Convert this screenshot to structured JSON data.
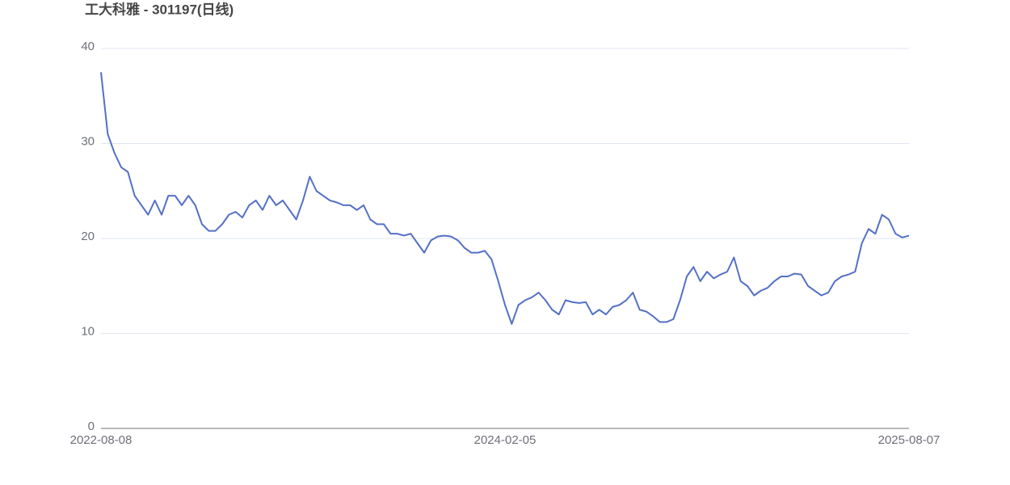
{
  "chart_data": {
    "type": "line",
    "title": "工大科雅 - 301197(日线)",
    "categories": [
      "2022-08-08",
      null,
      null,
      null,
      null,
      null,
      null,
      null,
      null,
      null,
      null,
      null,
      null,
      null,
      null,
      null,
      null,
      null,
      null,
      null,
      null,
      null,
      null,
      null,
      null,
      null,
      null,
      null,
      null,
      null,
      null,
      null,
      null,
      null,
      null,
      null,
      null,
      null,
      null,
      null,
      null,
      null,
      null,
      null,
      null,
      null,
      null,
      null,
      null,
      null,
      null,
      null,
      null,
      null,
      null,
      null,
      null,
      null,
      null,
      null,
      "2024-02-05",
      null,
      null,
      null,
      null,
      null,
      null,
      null,
      null,
      null,
      null,
      null,
      null,
      null,
      null,
      null,
      null,
      null,
      null,
      null,
      null,
      null,
      null,
      null,
      null,
      null,
      null,
      null,
      null,
      null,
      null,
      null,
      null,
      null,
      null,
      null,
      null,
      null,
      null,
      null,
      null,
      null,
      null,
      null,
      null,
      null,
      null,
      null,
      null,
      null,
      null,
      null,
      null,
      null,
      null,
      null,
      null,
      null,
      null,
      null,
      "2025-08-07"
    ],
    "values": [
      37.5,
      31,
      29,
      27.5,
      27,
      24.5,
      23.5,
      22.5,
      24,
      22.5,
      24.5,
      24.5,
      23.5,
      24.5,
      23.5,
      21.5,
      20.8,
      20.8,
      21.5,
      22.5,
      22.8,
      22.2,
      23.5,
      24,
      23,
      24.5,
      23.5,
      24,
      23,
      22,
      24,
      26.5,
      25,
      24.5,
      24,
      23.8,
      23.5,
      23.5,
      23,
      23.5,
      22,
      21.5,
      21.5,
      20.5,
      20.5,
      20.3,
      20.5,
      19.5,
      18.5,
      19.8,
      20.2,
      20.3,
      20.2,
      19.8,
      19,
      18.5,
      18.5,
      18.7,
      17.8,
      15.5,
      13,
      11,
      13,
      13.5,
      13.8,
      14.3,
      13.5,
      12.5,
      12,
      13.5,
      13.3,
      13.2,
      13.3,
      12,
      12.5,
      12,
      12.8,
      13,
      13.5,
      14.3,
      12.5,
      12.3,
      11.8,
      11.2,
      11.2,
      11.5,
      13.5,
      16,
      17,
      15.5,
      16.5,
      15.8,
      16.2,
      16.5,
      18,
      15.5,
      15,
      14,
      14.5,
      14.8,
      15.5,
      16,
      16,
      16.3,
      16.2,
      15,
      14.5,
      14,
      14.3,
      15.5,
      16,
      16.2,
      16.5,
      19.5,
      21,
      20.5,
      22.5,
      22,
      20.5,
      20.1,
      20.3
    ],
    "color": "#5470c6",
    "ylim": [
      0,
      40
    ],
    "yticks": [
      0,
      10,
      20,
      30,
      40
    ],
    "grid": true
  }
}
